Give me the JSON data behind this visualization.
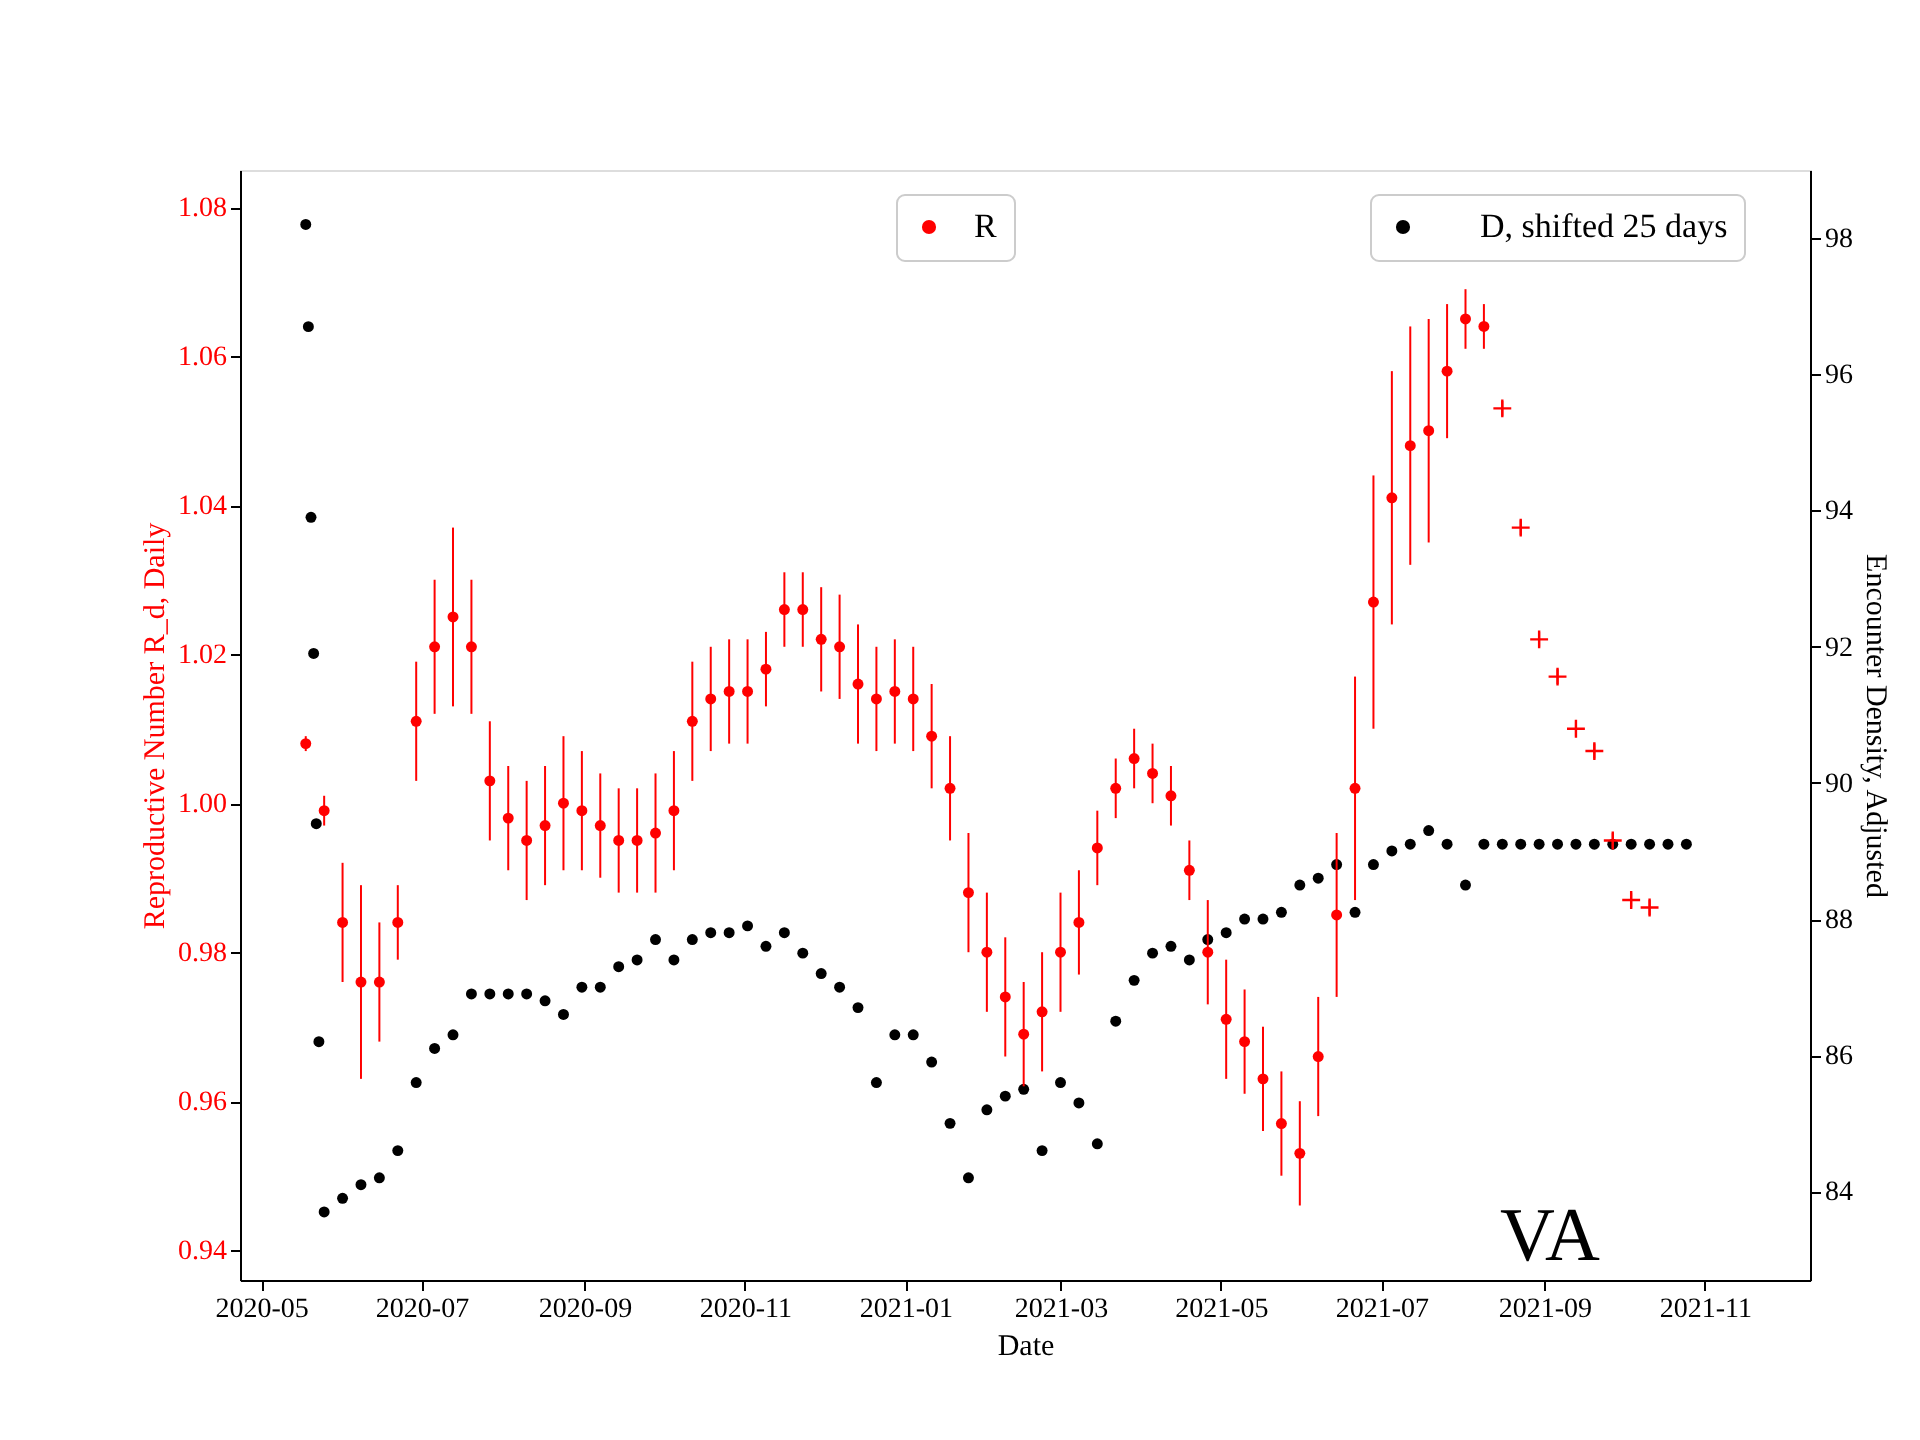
{
  "chart_data": {
    "type": "scatter",
    "xlabel": "Date",
    "ylabel": "Reproductive Number R_d, Daily",
    "y2label": "Encounter Density, Adjusted",
    "xlim": [
      "2020-04-23",
      "2021-12-11"
    ],
    "xticks": [
      "2020-05",
      "2020-07",
      "2020-09",
      "2020-11",
      "2021-01",
      "2021-03",
      "2021-05",
      "2021-07",
      "2021-09",
      "2021-11"
    ],
    "ylim": [
      0.936,
      1.085
    ],
    "yticks": [
      0.94,
      0.96,
      0.98,
      {
        "value": 1.0,
        "label": "1.00"
      },
      1.02,
      1.04,
      1.06,
      1.08
    ],
    "y2lim": [
      82.7,
      99.0
    ],
    "y2ticks": [
      84,
      86,
      88,
      90,
      92,
      94,
      96,
      98
    ],
    "grid": false,
    "legend": "top right",
    "annotations": [
      "VA"
    ],
    "series": [
      {
        "name": "R",
        "color": "#ff0000",
        "marker": "circle",
        "x": [
          "2020-05-18",
          "2020-05-25",
          "2020-06-01",
          "2020-06-08",
          "2020-06-15",
          "2020-06-22",
          "2020-06-29",
          "2020-07-06",
          "2020-07-13",
          "2020-07-20",
          "2020-07-27",
          "2020-08-03",
          "2020-08-10",
          "2020-08-17",
          "2020-08-24",
          "2020-08-31",
          "2020-09-07",
          "2020-09-14",
          "2020-09-21",
          "2020-09-28",
          "2020-10-05",
          "2020-10-12",
          "2020-10-19",
          "2020-10-26",
          "2020-11-02",
          "2020-11-09",
          "2020-11-16",
          "2020-11-23",
          "2020-11-30",
          "2020-12-07",
          "2020-12-14",
          "2020-12-21",
          "2020-12-28",
          "2021-01-04",
          "2021-01-11",
          "2021-01-18",
          "2021-01-25",
          "2021-02-01",
          "2021-02-08",
          "2021-02-15",
          "2021-02-22",
          "2021-03-01",
          "2021-03-08",
          "2021-03-15",
          "2021-03-22",
          "2021-03-29",
          "2021-04-05",
          "2021-04-12",
          "2021-04-19",
          "2021-04-26",
          "2021-05-03",
          "2021-05-10",
          "2021-05-17",
          "2021-05-24",
          "2021-05-31",
          "2021-06-07",
          "2021-06-14",
          "2021-06-21",
          "2021-06-28",
          "2021-07-05",
          "2021-07-12",
          "2021-07-19",
          "2021-07-26",
          "2021-08-02",
          "2021-08-09"
        ],
        "values": [
          1.008,
          0.999,
          0.984,
          0.976,
          0.976,
          0.984,
          1.011,
          1.021,
          1.025,
          1.021,
          1.003,
          0.998,
          0.995,
          0.997,
          1.0,
          0.999,
          0.997,
          0.995,
          0.995,
          0.996,
          0.999,
          1.011,
          1.014,
          1.015,
          1.015,
          1.018,
          1.026,
          1.026,
          1.022,
          1.021,
          1.016,
          1.014,
          1.015,
          1.014,
          1.009,
          1.002,
          0.988,
          0.98,
          0.974,
          0.969,
          0.972,
          0.98,
          0.984,
          0.994,
          1.002,
          1.006,
          1.004,
          1.001,
          0.991,
          0.98,
          0.971,
          0.968,
          0.963,
          0.957,
          0.953,
          0.966,
          0.985,
          1.002,
          1.027,
          1.041,
          1.048,
          1.05,
          1.058,
          1.065,
          1.064
        ],
        "errors": [
          0.001,
          0.002,
          0.008,
          0.013,
          0.008,
          0.005,
          0.008,
          0.009,
          0.012,
          0.009,
          0.008,
          0.007,
          0.008,
          0.008,
          0.009,
          0.008,
          0.007,
          0.007,
          0.007,
          0.008,
          0.008,
          0.008,
          0.007,
          0.007,
          0.007,
          0.005,
          0.005,
          0.005,
          0.007,
          0.007,
          0.008,
          0.007,
          0.007,
          0.007,
          0.007,
          0.007,
          0.008,
          0.008,
          0.008,
          0.007,
          0.008,
          0.008,
          0.007,
          0.005,
          0.004,
          0.004,
          0.004,
          0.004,
          0.004,
          0.007,
          0.008,
          0.007,
          0.007,
          0.007,
          0.007,
          0.008,
          0.011,
          0.015,
          0.017,
          0.017,
          0.016,
          0.015,
          0.009,
          0.004,
          0.003
        ]
      },
      {
        "color": "#ff0000",
        "marker": "cross",
        "x": [
          "2021-08-16",
          "2021-08-23",
          "2021-08-30",
          "2021-09-06",
          "2021-09-13",
          "2021-09-20",
          "2021-09-27",
          "2021-10-04",
          "2021-10-11"
        ],
        "values": [
          1.053,
          1.037,
          1.022,
          1.017,
          1.01,
          1.007,
          0.995,
          0.987,
          0.986
        ],
        "errors": [
          0.001,
          0.001,
          0.001,
          0.001,
          0.001,
          0.001,
          0.001,
          0.001,
          0.001
        ]
      },
      {
        "name": "D, shifted 25 days",
        "color": "#000000",
        "marker": "circle",
        "axis": "y2",
        "x": [
          "2020-05-18",
          "2020-05-19",
          "2020-05-20",
          "2020-05-21",
          "2020-05-22",
          "2020-05-23",
          "2020-05-25",
          "2020-06-01",
          "2020-06-08",
          "2020-06-15",
          "2020-06-22",
          "2020-06-29",
          "2020-07-06",
          "2020-07-13",
          "2020-07-20",
          "2020-07-27",
          "2020-08-03",
          "2020-08-10",
          "2020-08-17",
          "2020-08-24",
          "2020-08-31",
          "2020-09-07",
          "2020-09-14",
          "2020-09-21",
          "2020-09-28",
          "2020-10-05",
          "2020-10-12",
          "2020-10-19",
          "2020-10-26",
          "2020-11-02",
          "2020-11-09",
          "2020-11-16",
          "2020-11-23",
          "2020-11-30",
          "2020-12-07",
          "2020-12-14",
          "2020-12-21",
          "2020-12-28",
          "2021-01-04",
          "2021-01-11",
          "2021-01-18",
          "2021-01-25",
          "2021-02-01",
          "2021-02-08",
          "2021-02-15",
          "2021-02-22",
          "2021-03-01",
          "2021-03-08",
          "2021-03-15",
          "2021-03-22",
          "2021-03-29",
          "2021-04-05",
          "2021-04-12",
          "2021-04-19",
          "2021-04-26",
          "2021-05-03",
          "2021-05-10",
          "2021-05-17",
          "2021-05-24",
          "2021-05-31",
          "2021-06-07",
          "2021-06-14",
          "2021-06-21",
          "2021-06-28",
          "2021-07-05",
          "2021-07-12",
          "2021-07-19",
          "2021-07-26",
          "2021-08-02",
          "2021-08-09",
          "2021-08-16",
          "2021-08-23",
          "2021-08-30",
          "2021-09-06",
          "2021-09-13",
          "2021-09-20",
          "2021-09-27",
          "2021-10-04",
          "2021-10-11",
          "2021-10-18",
          "2021-10-25"
        ],
        "values": [
          98.2,
          96.7,
          93.9,
          91.9,
          89.4,
          86.2,
          83.7,
          83.9,
          84.1,
          84.2,
          84.6,
          85.6,
          86.1,
          86.3,
          86.9,
          86.9,
          86.9,
          86.9,
          86.8,
          86.6,
          87.0,
          87.0,
          87.3,
          87.4,
          87.7,
          87.4,
          87.7,
          87.8,
          87.8,
          87.9,
          87.6,
          87.8,
          87.5,
          87.2,
          87.0,
          86.7,
          85.6,
          86.3,
          86.3,
          85.9,
          85.0,
          84.2,
          85.2,
          85.4,
          85.5,
          84.6,
          85.6,
          85.3,
          84.7,
          86.5,
          87.1,
          87.5,
          87.6,
          87.4,
          87.7,
          87.8,
          88.0,
          88.0,
          88.1,
          88.5,
          88.6,
          88.8,
          88.1,
          88.8,
          89.0,
          89.1,
          89.3,
          89.1,
          88.5,
          89.1,
          89.1,
          89.1,
          89.1,
          89.1,
          89.1,
          89.1,
          89.1,
          89.1,
          89.1,
          89.1,
          89.1
        ]
      }
    ]
  }
}
